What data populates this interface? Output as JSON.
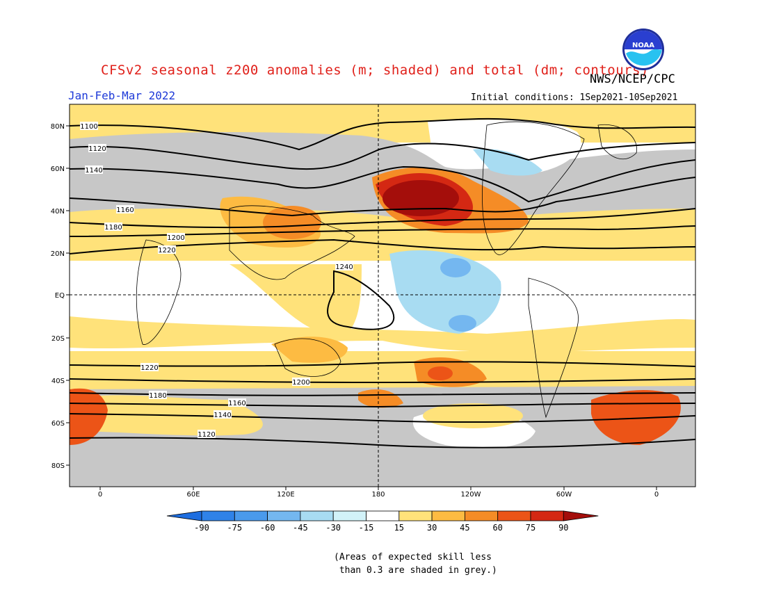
{
  "title": "CFSv2 seasonal z200 anomalies (m; shaded) and total (dm; contours)",
  "agency": "NWS/NCEP/CPC",
  "logo_text": "NOAA",
  "season": "Jan-Feb-Mar 2022",
  "initial_conditions": "Initial conditions: 1Sep2021-10Sep2021",
  "lat_labels": [
    "80N",
    "60N",
    "40N",
    "20N",
    "EQ",
    "20S",
    "40S",
    "60S",
    "80S"
  ],
  "lon_labels": [
    "0",
    "60E",
    "120E",
    "180",
    "120W",
    "60W",
    "0"
  ],
  "contour_labels": [
    "1100",
    "1120",
    "1140",
    "1160",
    "1180",
    "1200",
    "1220",
    "1240",
    "1220",
    "1200",
    "1180",
    "1160",
    "1140",
    "1120"
  ],
  "colorbar": {
    "labels": [
      "-90",
      "-75",
      "-60",
      "-45",
      "-30",
      "-15",
      "15",
      "30",
      "45",
      "60",
      "75",
      "90"
    ],
    "colors": [
      "#1e6ee0",
      "#2f82e8",
      "#4a9aec",
      "#74b7f0",
      "#a8dcf2",
      "#d2f2f8",
      "#ffffff",
      "#ffe27a",
      "#fdbb42",
      "#f58c26",
      "#ec5417",
      "#d42813",
      "#a40e0b"
    ]
  },
  "note_lines": [
    "(Areas of expected skill less",
    " than 0.3 are shaded in grey.)"
  ]
}
